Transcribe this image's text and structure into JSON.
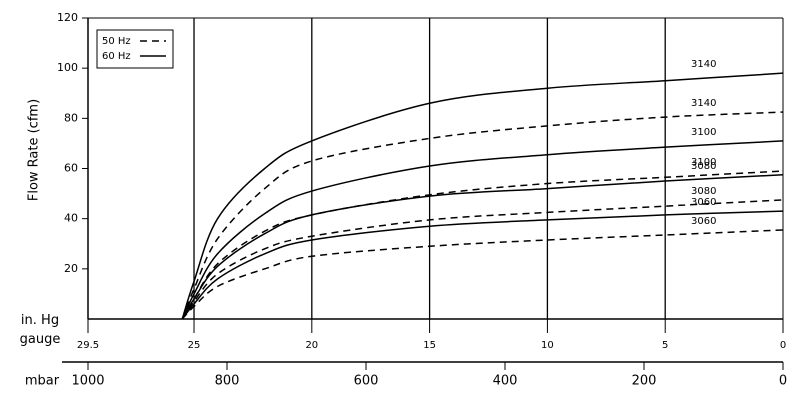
{
  "chart_data": {
    "type": "line",
    "y_label": "Flow Rate (cfm)",
    "x_label": "in. Hg gauge",
    "x2_label": "mbar",
    "x": [
      25.5,
      25,
      24,
      22,
      20,
      15,
      10,
      5,
      0
    ],
    "xlim": [
      29.5,
      0
    ],
    "xticks": [
      29.5,
      25,
      20,
      15,
      10,
      5,
      0
    ],
    "x2lim": [
      1000,
      0
    ],
    "x2ticks": [
      1000,
      800,
      600,
      400,
      200,
      0
    ],
    "ylim": [
      0,
      120
    ],
    "yticks": [
      20,
      40,
      60,
      80,
      100,
      120
    ],
    "vgrid": [
      25,
      20,
      15,
      10,
      5
    ],
    "color": "#000000",
    "legend": [
      {
        "label": "50 Hz",
        "style": "dashed"
      },
      {
        "label": "60 Hz",
        "style": "solid"
      }
    ],
    "legend_position": "upper left",
    "series": [
      {
        "name": "3140",
        "style": "solid",
        "values": [
          0,
          15,
          40,
          60,
          71,
          86,
          92,
          95,
          98
        ]
      },
      {
        "name": "3140",
        "style": "dashed",
        "values": [
          0,
          12,
          32,
          52,
          63,
          72,
          77,
          80.5,
          82.5
        ]
      },
      {
        "name": "3100",
        "style": "solid",
        "values": [
          0,
          10,
          26,
          42,
          51,
          61,
          65.5,
          68.5,
          71
        ]
      },
      {
        "name": "3100",
        "style": "dashed",
        "values": [
          0,
          8,
          22,
          35,
          41.5,
          49.5,
          54,
          56.5,
          59
        ]
      },
      {
        "name": "3080",
        "style": "solid",
        "values": [
          0,
          8,
          21,
          34,
          41.5,
          49,
          52,
          55,
          57.5
        ]
      },
      {
        "name": "3080",
        "style": "dashed",
        "values": [
          0,
          7,
          18,
          28,
          33,
          39.5,
          42.5,
          45,
          47.5
        ]
      },
      {
        "name": "3060",
        "style": "solid",
        "values": [
          0,
          6,
          16,
          26,
          31.5,
          37,
          39.5,
          41.5,
          43
        ]
      },
      {
        "name": "3060",
        "style": "dashed",
        "values": [
          0,
          5,
          13,
          20,
          25,
          29,
          31.5,
          33.5,
          35.5
        ]
      }
    ]
  }
}
